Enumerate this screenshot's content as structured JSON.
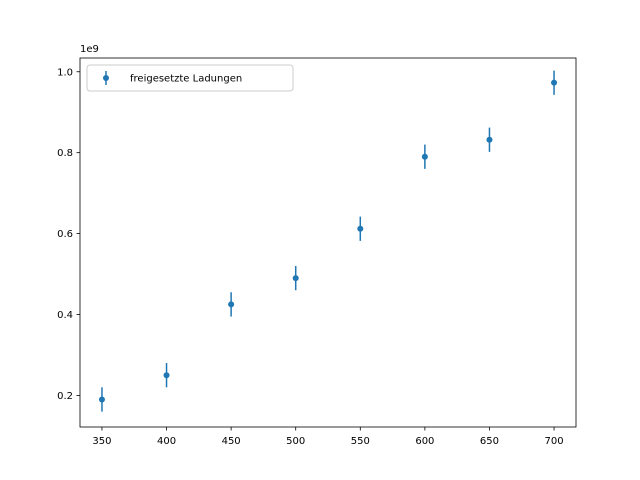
{
  "chart_data": {
    "type": "scatter",
    "title": "",
    "xlabel": "",
    "ylabel": "",
    "y_offset_label": "1e9",
    "xlim": [
      333,
      717
    ],
    "ylim": [
      0.122,
      1.034
    ],
    "x_ticks": [
      350,
      400,
      450,
      500,
      550,
      600,
      650,
      700
    ],
    "y_ticks": [
      0.2,
      0.4,
      0.6,
      0.8,
      1.0
    ],
    "y_tick_labels": [
      "0.2",
      "0.4",
      "0.6",
      "0.8",
      "1.0"
    ],
    "legend": {
      "placement": "top-left",
      "entries": [
        "freigesetzte Ladungen"
      ]
    },
    "grid": false,
    "series": [
      {
        "name": "freigesetzte Ladungen",
        "color": "#1f77b4",
        "x": [
          350,
          400,
          450,
          500,
          550,
          600,
          650,
          700
        ],
        "y": [
          0.19,
          0.25,
          0.425,
          0.49,
          0.612,
          0.79,
          0.832,
          0.973
        ],
        "yerr": [
          0.03,
          0.03,
          0.03,
          0.03,
          0.03,
          0.03,
          0.03,
          0.03
        ]
      }
    ]
  }
}
